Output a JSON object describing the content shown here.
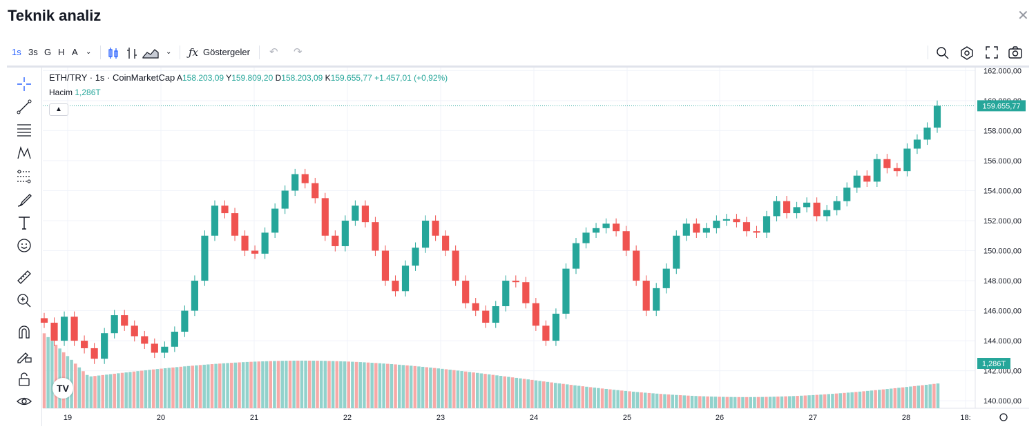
{
  "window": {
    "title": "Teknik analiz",
    "close_icon": "close-icon"
  },
  "toolbar": {
    "intervals": [
      "1s",
      "3s",
      "G",
      "H",
      "A"
    ],
    "active_interval": "1s",
    "indicators_label": "Göstergeler"
  },
  "legend": {
    "symbol": "ETH/TRY · 1s · CoinMarketCap",
    "open_label": "A",
    "open": "158.203,09",
    "high_label": "Y",
    "high": "159.809,20",
    "low_label": "D",
    "low": "158.203,09",
    "close_label": "K",
    "close": "159.655,77",
    "change": "+1.457,01 (+0,92%)",
    "volume_label": "Hacim",
    "volume": "1,286T"
  },
  "colors": {
    "up": "#26a69a",
    "down": "#ef5350",
    "up_volume": "#92d2cc",
    "down_volume": "#f7a9a7"
  },
  "chart_data": {
    "type": "candlestick",
    "x_tick_labels": [
      "19",
      "20",
      "21",
      "22",
      "23",
      "24",
      "25",
      "26",
      "27",
      "28",
      "18:"
    ],
    "y_tick_labels": [
      "162.000,00",
      "160.000,00",
      "158.000,00",
      "156.000,00",
      "154.000,00",
      "152.000,00",
      "150.000,00",
      "148.000,00",
      "146.000,00",
      "144.000,00",
      "142.000,00",
      "140.000,00"
    ],
    "y_range": [
      139500,
      162200
    ],
    "last_price": 159655.77,
    "last_price_label": "159.655,77",
    "last_volume_label": "1,286T",
    "close_series": [
      145200,
      144000,
      145600,
      144000,
      143500,
      142800,
      144500,
      145700,
      145000,
      144300,
      143800,
      143200,
      143600,
      144600,
      146000,
      148000,
      151000,
      153000,
      152500,
      151000,
      150000,
      149800,
      151200,
      152800,
      154000,
      155100,
      154500,
      153500,
      151000,
      150300,
      152000,
      153000,
      151900,
      150000,
      148000,
      147300,
      149000,
      150200,
      152000,
      151000,
      150000,
      148000,
      146500,
      146000,
      145200,
      146300,
      148000,
      147900,
      146500,
      145000,
      144000,
      145800,
      148800,
      150500,
      151200,
      151500,
      151800,
      151300,
      150000,
      148000,
      146000,
      147500,
      148800,
      151000,
      151800,
      151200,
      151500,
      152000,
      152100,
      151900,
      151300,
      151200,
      152300,
      153300,
      152500,
      152900,
      153200,
      152300,
      152700,
      153300,
      154200,
      155000,
      154600,
      156100,
      155500,
      155300,
      156800,
      157400,
      158200,
      159655.77
    ],
    "volume_note": "Volume bars shown in lower pane; only last value labeled (1,286T)"
  }
}
